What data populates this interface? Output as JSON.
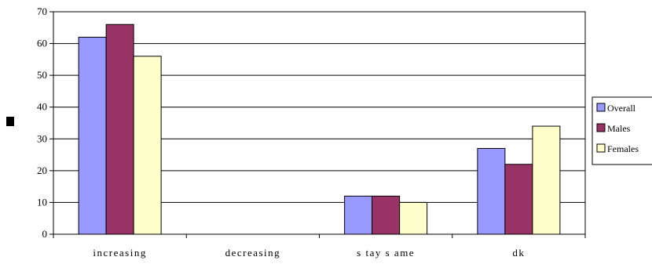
{
  "chart_data": {
    "type": "bar",
    "categories": [
      "increasing",
      "decreasing",
      "staysame",
      "dk"
    ],
    "category_labels": [
      "increasing",
      "decreasing",
      "s tay s ame",
      "dk"
    ],
    "series": [
      {
        "name": "Overall",
        "values": [
          62,
          0,
          12,
          27
        ],
        "color": "#9999ff"
      },
      {
        "name": "Males",
        "values": [
          66,
          0,
          12,
          22
        ],
        "color": "#993366"
      },
      {
        "name": "Females",
        "values": [
          56,
          0,
          10,
          34
        ],
        "color": "#ffffcc"
      }
    ],
    "title": "",
    "xlabel": "",
    "ylabel": "",
    "ylim": [
      0,
      70
    ],
    "yticks": [
      0,
      10,
      20,
      30,
      40,
      50,
      60,
      70
    ],
    "grid": true,
    "legend_position": "right"
  }
}
